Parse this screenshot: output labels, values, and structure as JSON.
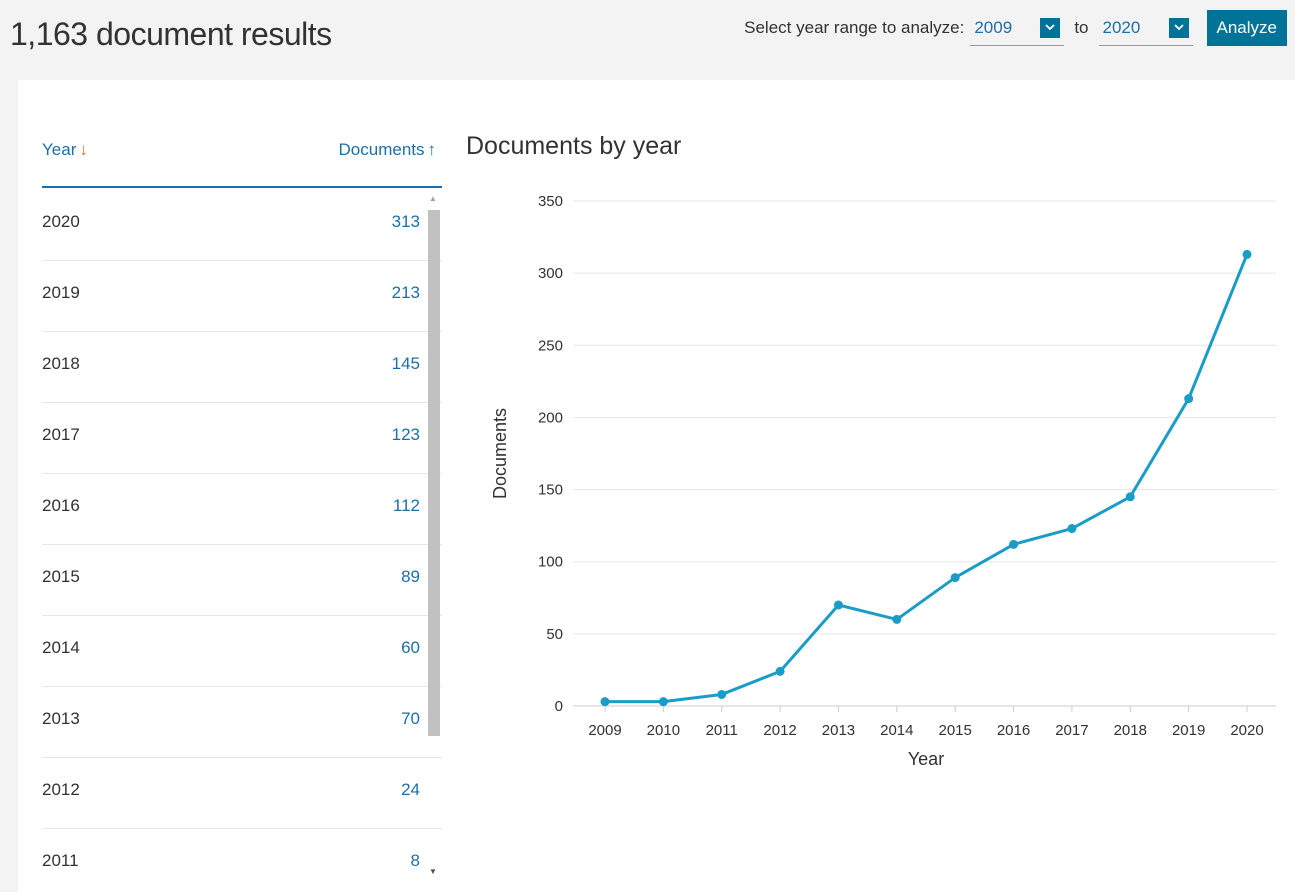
{
  "header": {
    "results_title": "1,163 document results",
    "range_label": "Select year range to analyze:",
    "from_year": "2009",
    "to_label": "to",
    "to_year": "2020",
    "analyze_label": "Analyze"
  },
  "table": {
    "year_header": "Year",
    "docs_header": "Documents",
    "year_sort_icon": "↓",
    "docs_sort_icon": "↑",
    "rows": [
      {
        "year": "2020",
        "count": "313"
      },
      {
        "year": "2019",
        "count": "213"
      },
      {
        "year": "2018",
        "count": "145"
      },
      {
        "year": "2017",
        "count": "123"
      },
      {
        "year": "2016",
        "count": "112"
      },
      {
        "year": "2015",
        "count": "89"
      },
      {
        "year": "2014",
        "count": "60"
      },
      {
        "year": "2013",
        "count": "70"
      },
      {
        "year": "2012",
        "count": "24"
      },
      {
        "year": "2011",
        "count": "8"
      }
    ]
  },
  "colors": {
    "accent": "#007398",
    "line": "#1a9cc9",
    "link": "#1c6fa8",
    "sort_arrow": "#e9711c"
  },
  "chart_data": {
    "type": "line",
    "title": "Documents by year",
    "xlabel": "Year",
    "ylabel": "Documents",
    "x": [
      "2009",
      "2010",
      "2011",
      "2012",
      "2013",
      "2014",
      "2015",
      "2016",
      "2017",
      "2018",
      "2019",
      "2020"
    ],
    "values": [
      3,
      3,
      8,
      24,
      70,
      60,
      89,
      112,
      123,
      145,
      213,
      313
    ],
    "ylim": [
      0,
      350
    ],
    "yticks": [
      0,
      50,
      100,
      150,
      200,
      250,
      300,
      350
    ],
    "grid": true,
    "legend": "none"
  }
}
